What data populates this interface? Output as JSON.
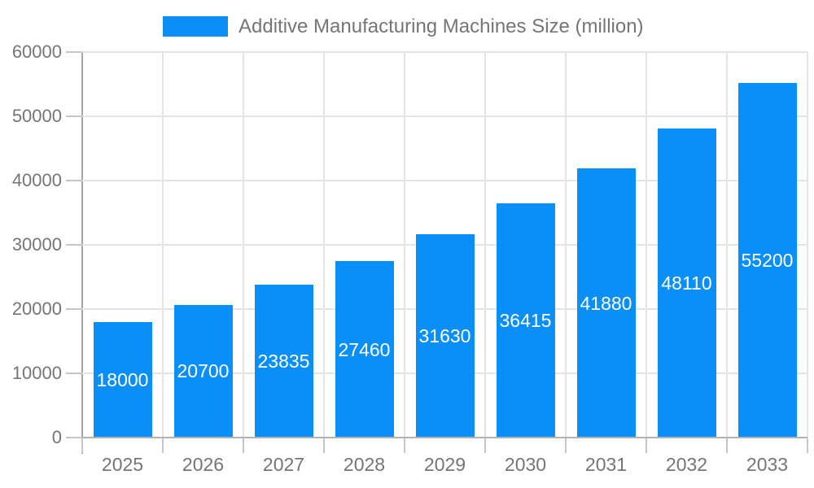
{
  "legend": {
    "label": "Additive Manufacturing Machines Size (million)",
    "swatch_color": "#0a8ff8"
  },
  "chart_data": {
    "type": "bar",
    "title": "Additive Manufacturing Machines Size (million)",
    "categories": [
      "2025",
      "2026",
      "2027",
      "2028",
      "2029",
      "2030",
      "2031",
      "2032",
      "2033"
    ],
    "series": [
      {
        "name": "Additive Manufacturing Machines Size (million)",
        "values": [
          18000,
          20700,
          23835,
          27460,
          31630,
          36415,
          41880,
          48110,
          55200
        ]
      }
    ],
    "value_labels_shown": true,
    "xlabel": "",
    "ylabel": "",
    "ylim": [
      0,
      60000
    ],
    "yticks": [
      0,
      10000,
      20000,
      30000,
      40000,
      50000,
      60000
    ],
    "grid": true,
    "legend_position": "top",
    "colors": {
      "bar": "#0a8ff8",
      "gridline": "#e4e4e4",
      "tick": "#c6c6c6",
      "axis_line": "#a6a6a6",
      "baseline": "#b3b3b3",
      "axis_text": "#757575",
      "value_text": "#ffffff",
      "background": "#ffffff"
    }
  }
}
